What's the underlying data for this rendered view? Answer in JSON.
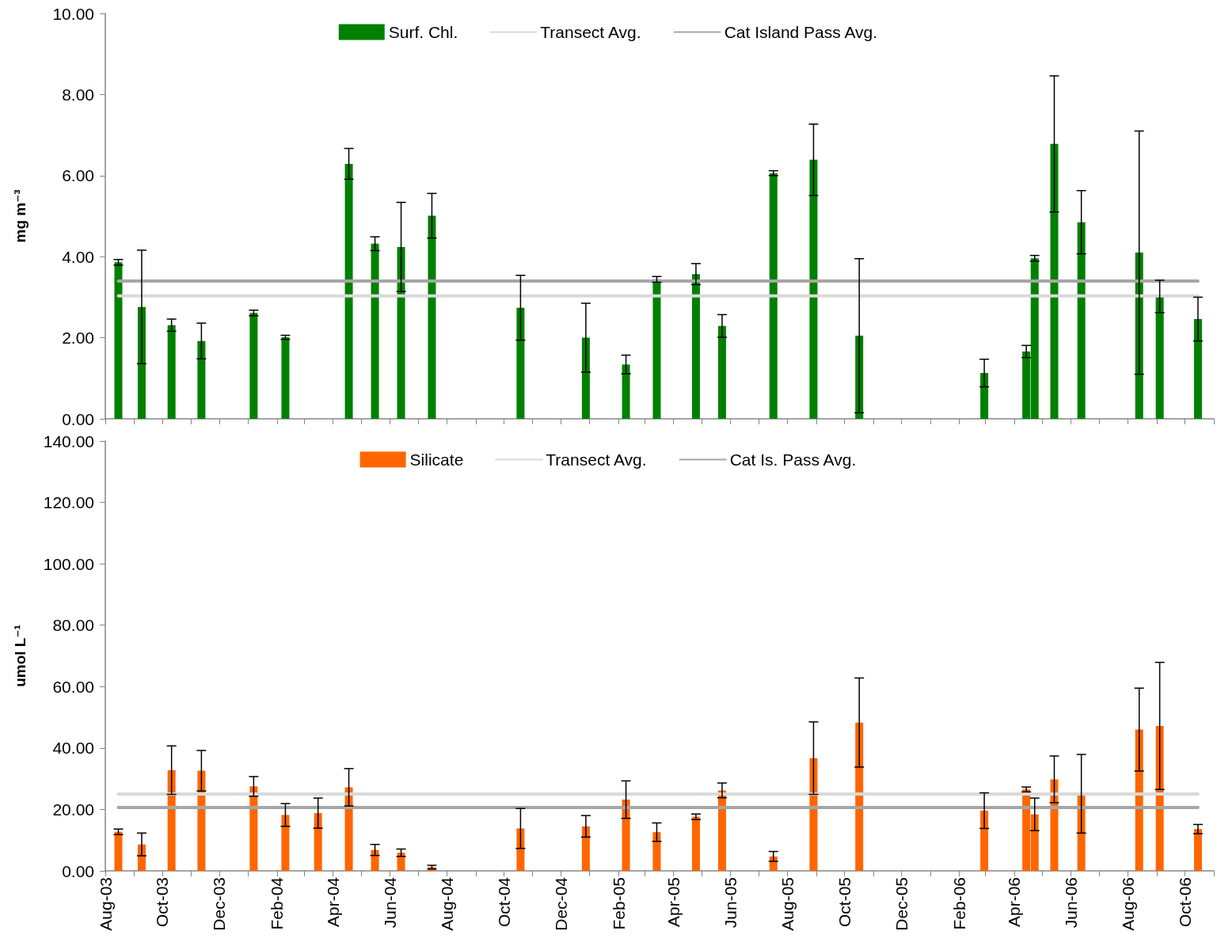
{
  "chart_data": [
    {
      "type": "bar",
      "ylabel": "mg m⁻³",
      "legend": "top",
      "tick_labels": "y",
      "marker": "none",
      "xlim": [
        "2003-08-01",
        "2006-11-01"
      ],
      "xticks": [
        {
          "value": "2003-08-01",
          "label": null
        },
        {
          "value": "2003-09-01",
          "label": null
        },
        {
          "value": "2003-10-01",
          "label": null
        },
        {
          "value": "2003-11-01",
          "label": null
        },
        {
          "value": "2003-12-01",
          "label": null
        },
        {
          "value": "2004-01-01",
          "label": null
        },
        {
          "value": "2004-02-01",
          "label": null
        },
        {
          "value": "2004-03-01",
          "label": null
        },
        {
          "value": "2004-04-01",
          "label": null
        },
        {
          "value": "2004-05-01",
          "label": null
        },
        {
          "value": "2004-06-01",
          "label": null
        },
        {
          "value": "2004-07-01",
          "label": null
        },
        {
          "value": "2004-08-01",
          "label": null
        },
        {
          "value": "2004-09-01",
          "label": null
        },
        {
          "value": "2004-10-01",
          "label": null
        },
        {
          "value": "2004-11-01",
          "label": null
        },
        {
          "value": "2004-12-01",
          "label": null
        },
        {
          "value": "2005-01-01",
          "label": null
        },
        {
          "value": "2005-02-01",
          "label": null
        },
        {
          "value": "2005-03-01",
          "label": null
        },
        {
          "value": "2005-04-01",
          "label": null
        },
        {
          "value": "2005-05-01",
          "label": null
        },
        {
          "value": "2005-06-01",
          "label": null
        },
        {
          "value": "2005-07-01",
          "label": null
        },
        {
          "value": "2005-08-01",
          "label": null
        },
        {
          "value": "2005-09-01",
          "label": null
        },
        {
          "value": "2005-10-01",
          "label": null
        },
        {
          "value": "2005-11-01",
          "label": null
        },
        {
          "value": "2005-12-01",
          "label": null
        },
        {
          "value": "2006-01-01",
          "label": null
        },
        {
          "value": "2006-02-01",
          "label": null
        },
        {
          "value": "2006-03-01",
          "label": null
        },
        {
          "value": "2006-04-01",
          "label": null
        },
        {
          "value": "2006-05-01",
          "label": null
        },
        {
          "value": "2006-06-01",
          "label": null
        },
        {
          "value": "2006-07-01",
          "label": null
        },
        {
          "value": "2006-08-01",
          "label": null
        },
        {
          "value": "2006-09-01",
          "label": null
        },
        {
          "value": "2006-10-01",
          "label": null
        },
        {
          "value": "2006-11-01",
          "label": null
        }
      ],
      "ylim": [
        0,
        10
      ],
      "yticks": [
        {
          "value": 0,
          "label": "0.00"
        },
        {
          "value": 2,
          "label": "2.00"
        },
        {
          "value": 4,
          "label": "4.00"
        },
        {
          "value": 6,
          "label": "6.00"
        },
        {
          "value": 8,
          "label": "8.00"
        },
        {
          "value": 10,
          "label": "10.00"
        }
      ],
      "series": [
        {
          "name": "Surf. Chl.",
          "color": "#008000",
          "x": [
            "2003-08-15",
            "2003-09-09",
            "2003-10-11",
            "2003-11-12",
            "2004-01-07",
            "2004-02-10",
            "2004-04-18",
            "2004-05-16",
            "2004-06-13",
            "2004-07-16",
            "2004-10-19",
            "2004-12-28",
            "2005-02-09",
            "2005-03-14",
            "2005-04-25",
            "2005-05-23",
            "2005-07-17",
            "2005-08-29",
            "2005-10-17",
            "2006-02-28",
            "2006-04-14",
            "2006-04-23",
            "2006-05-14",
            "2006-06-12",
            "2006-08-13",
            "2006-09-04",
            "2006-10-15"
          ],
          "values": [
            3.86,
            2.76,
            2.31,
            1.92,
            2.61,
            2.01,
            6.29,
            4.32,
            4.24,
            5.01,
            2.74,
            2.0,
            1.34,
            3.44,
            3.57,
            2.29,
            6.06,
            6.39,
            2.05,
            1.13,
            1.66,
            3.96,
            6.78,
            4.85,
            4.1,
            3.02,
            2.46
          ],
          "errors": [
            0.07,
            1.4,
            0.15,
            0.44,
            0.07,
            0.05,
            0.38,
            0.17,
            1.1,
            0.55,
            0.8,
            0.85,
            0.23,
            0.07,
            0.26,
            0.28,
            0.06,
            0.88,
            1.9,
            0.34,
            0.15,
            0.07,
            1.68,
            0.78,
            3.0,
            0.4,
            0.54
          ]
        },
        {
          "name": "Transect Avg.",
          "type": "line",
          "color": "#d9d9d9",
          "x": [
            "2003-08-15",
            "2006-10-15"
          ],
          "values": [
            3.03,
            3.03
          ]
        },
        {
          "name": "Cat Island Pass Avg.",
          "type": "line",
          "color": "#a6a6a6",
          "x": [
            "2003-08-15",
            "2006-10-15"
          ],
          "values": [
            3.4,
            3.4
          ]
        }
      ]
    },
    {
      "type": "bar",
      "ylabel": "umol L⁻¹",
      "legend": "top",
      "marker": "none",
      "xlim": [
        "2003-08-01",
        "2006-11-01"
      ],
      "xticks": [
        {
          "value": "2003-08-01",
          "label": "Aug-03"
        },
        {
          "value": "2003-09-01",
          "label": null
        },
        {
          "value": "2003-10-01",
          "label": "Oct-03"
        },
        {
          "value": "2003-11-01",
          "label": null
        },
        {
          "value": "2003-12-01",
          "label": "Dec-03"
        },
        {
          "value": "2004-01-01",
          "label": null
        },
        {
          "value": "2004-02-01",
          "label": "Feb-04"
        },
        {
          "value": "2004-03-01",
          "label": null
        },
        {
          "value": "2004-04-01",
          "label": "Apr-04"
        },
        {
          "value": "2004-05-01",
          "label": null
        },
        {
          "value": "2004-06-01",
          "label": "Jun-04"
        },
        {
          "value": "2004-07-01",
          "label": null
        },
        {
          "value": "2004-08-01",
          "label": "Aug-04"
        },
        {
          "value": "2004-09-01",
          "label": null
        },
        {
          "value": "2004-10-01",
          "label": "Oct-04"
        },
        {
          "value": "2004-11-01",
          "label": null
        },
        {
          "value": "2004-12-01",
          "label": "Dec-04"
        },
        {
          "value": "2005-01-01",
          "label": null
        },
        {
          "value": "2005-02-01",
          "label": "Feb-05"
        },
        {
          "value": "2005-03-01",
          "label": null
        },
        {
          "value": "2005-04-01",
          "label": "Apr-05"
        },
        {
          "value": "2005-05-01",
          "label": null
        },
        {
          "value": "2005-06-01",
          "label": "Jun-05"
        },
        {
          "value": "2005-07-01",
          "label": null
        },
        {
          "value": "2005-08-01",
          "label": "Aug-05"
        },
        {
          "value": "2005-09-01",
          "label": null
        },
        {
          "value": "2005-10-01",
          "label": "Oct-05"
        },
        {
          "value": "2005-11-01",
          "label": null
        },
        {
          "value": "2005-12-01",
          "label": "Dec-05"
        },
        {
          "value": "2006-01-01",
          "label": null
        },
        {
          "value": "2006-02-01",
          "label": "Feb-06"
        },
        {
          "value": "2006-03-01",
          "label": null
        },
        {
          "value": "2006-04-01",
          "label": "Apr-06"
        },
        {
          "value": "2006-05-01",
          "label": null
        },
        {
          "value": "2006-06-01",
          "label": "Jun-06"
        },
        {
          "value": "2006-07-01",
          "label": null
        },
        {
          "value": "2006-08-01",
          "label": "Aug-06"
        },
        {
          "value": "2006-09-01",
          "label": null
        },
        {
          "value": "2006-10-01",
          "label": "Oct-06"
        },
        {
          "value": "2006-11-01",
          "label": null
        }
      ],
      "ylim": [
        0,
        140
      ],
      "yticks": [
        {
          "value": 0,
          "label": "0.00"
        },
        {
          "value": 20,
          "label": "20.00"
        },
        {
          "value": 40,
          "label": "40.00"
        },
        {
          "value": 60,
          "label": "60.00"
        },
        {
          "value": 80,
          "label": "80.00"
        },
        {
          "value": 100,
          "label": "100.00"
        },
        {
          "value": 120,
          "label": "120.00"
        },
        {
          "value": 140,
          "label": "140.00"
        }
      ],
      "series": [
        {
          "name": "Silicate",
          "color": "#ff6600",
          "x": [
            "2003-08-15",
            "2003-09-09",
            "2003-10-11",
            "2003-11-12",
            "2004-01-07",
            "2004-02-10",
            "2004-03-16",
            "2004-04-18",
            "2004-05-16",
            "2004-06-13",
            "2004-07-16",
            "2004-10-19",
            "2004-12-28",
            "2005-02-09",
            "2005-03-14",
            "2005-04-25",
            "2005-05-23",
            "2005-07-17",
            "2005-08-29",
            "2005-10-17",
            "2006-02-28",
            "2006-04-14",
            "2006-04-23",
            "2006-05-14",
            "2006-06-12",
            "2006-08-13",
            "2006-09-04",
            "2006-10-15"
          ],
          "values": [
            12.7,
            8.6,
            32.8,
            32.6,
            27.5,
            18.2,
            18.8,
            27.2,
            6.8,
            5.9,
            1.2,
            13.8,
            14.5,
            23.2,
            12.6,
            17.6,
            26.2,
            4.7,
            36.7,
            48.3,
            19.6,
            26.5,
            18.4,
            29.8,
            25.1,
            46.0,
            47.2,
            13.6
          ],
          "errors": [
            0.9,
            3.7,
            7.9,
            6.6,
            3.2,
            3.7,
            4.9,
            6.1,
            1.8,
            1.2,
            0.6,
            6.5,
            3.5,
            6.1,
            3.0,
            0.9,
            2.4,
            1.6,
            11.8,
            14.5,
            5.8,
            0.8,
            5.3,
            7.6,
            12.8,
            13.5,
            20.7,
            1.5
          ]
        },
        {
          "name": "Transect Avg.",
          "type": "line",
          "color": "#d9d9d9",
          "x": [
            "2003-08-15",
            "2006-10-15"
          ],
          "values": [
            25.0,
            25.0
          ]
        },
        {
          "name": "Cat Is. Pass Avg.",
          "type": "line",
          "color": "#a6a6a6",
          "x": [
            "2003-08-15",
            "2006-10-15"
          ],
          "values": [
            20.6,
            20.6
          ]
        }
      ]
    }
  ]
}
